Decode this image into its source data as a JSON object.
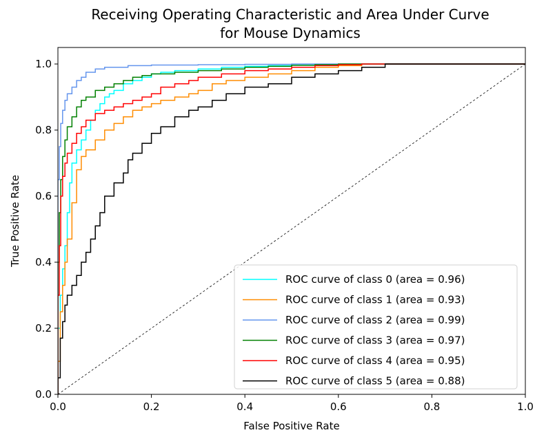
{
  "chart_data": {
    "type": "line",
    "title_lines": [
      "Receiving Operating Characteristic and Area Under Curve",
      "for Mouse Dynamics"
    ],
    "xlabel": "False Positive Rate",
    "ylabel": "True Positive Rate",
    "xlim": [
      0.0,
      1.0
    ],
    "ylim": [
      0.0,
      1.05
    ],
    "x_ticks": [
      0.0,
      0.2,
      0.4,
      0.6,
      0.8,
      1.0
    ],
    "x_tick_labels": [
      "0.0",
      "0.2",
      "0.4",
      "0.6",
      "0.8",
      "1.0"
    ],
    "y_ticks": [
      0.0,
      0.2,
      0.4,
      0.6,
      0.8,
      1.0
    ],
    "y_tick_labels": [
      "0.0",
      "0.2",
      "0.4",
      "0.6",
      "0.8",
      "1.0"
    ],
    "grid": false,
    "legend_position": "lower-right",
    "diagonal": {
      "x": [
        0,
        1
      ],
      "y": [
        0,
        1
      ],
      "color": "#000000",
      "style": "dashed"
    },
    "series": [
      {
        "name": "ROC curve of class 0 (area = 0.96)",
        "color": "#00ffff",
        "x": [
          0,
          0,
          0.005,
          0.01,
          0.015,
          0.02,
          0.025,
          0.03,
          0.04,
          0.05,
          0.06,
          0.07,
          0.08,
          0.09,
          0.1,
          0.11,
          0.12,
          0.14,
          0.16,
          0.18,
          0.2,
          0.22,
          0.25,
          0.3,
          0.35,
          0.4,
          0.45,
          0.5,
          0.55,
          0.6,
          0.65,
          0.7,
          0.8,
          0.9,
          1.0
        ],
        "y": [
          0,
          0.2,
          0.3,
          0.38,
          0.45,
          0.55,
          0.64,
          0.7,
          0.74,
          0.77,
          0.8,
          0.83,
          0.86,
          0.88,
          0.9,
          0.91,
          0.92,
          0.94,
          0.95,
          0.96,
          0.97,
          0.975,
          0.98,
          0.985,
          0.99,
          0.993,
          0.995,
          0.997,
          0.998,
          0.999,
          1.0,
          1.0,
          1.0,
          1.0,
          1.0
        ]
      },
      {
        "name": "ROC curve of class 1 (area = 0.93)",
        "color": "#ff8c00",
        "x": [
          0,
          0,
          0.005,
          0.01,
          0.015,
          0.02,
          0.03,
          0.04,
          0.05,
          0.06,
          0.08,
          0.1,
          0.12,
          0.14,
          0.16,
          0.18,
          0.2,
          0.22,
          0.25,
          0.28,
          0.3,
          0.33,
          0.36,
          0.4,
          0.45,
          0.5,
          0.55,
          0.6,
          0.65,
          0.7,
          0.8,
          0.9,
          1.0
        ],
        "y": [
          0,
          0.1,
          0.25,
          0.33,
          0.4,
          0.47,
          0.58,
          0.68,
          0.72,
          0.74,
          0.77,
          0.8,
          0.82,
          0.84,
          0.86,
          0.87,
          0.88,
          0.89,
          0.9,
          0.91,
          0.92,
          0.94,
          0.95,
          0.96,
          0.97,
          0.98,
          0.99,
          0.995,
          1.0,
          1.0,
          1.0,
          1.0,
          1.0
        ]
      },
      {
        "name": "ROC curve of class 2 (area = 0.99)",
        "color": "#6495ed",
        "x": [
          0,
          0,
          0.003,
          0.006,
          0.01,
          0.015,
          0.02,
          0.03,
          0.04,
          0.05,
          0.06,
          0.08,
          0.1,
          0.15,
          0.2,
          0.3,
          0.4,
          0.5,
          0.6,
          0.7,
          0.8,
          0.9,
          1.0
        ],
        "y": [
          0,
          0.65,
          0.75,
          0.82,
          0.86,
          0.89,
          0.91,
          0.93,
          0.95,
          0.96,
          0.975,
          0.985,
          0.99,
          0.995,
          0.997,
          0.998,
          0.999,
          1.0,
          1.0,
          1.0,
          1.0,
          1.0,
          1.0
        ]
      },
      {
        "name": "ROC curve of class 3 (area = 0.97)",
        "color": "#008000",
        "x": [
          0,
          0,
          0.003,
          0.006,
          0.01,
          0.015,
          0.02,
          0.03,
          0.04,
          0.05,
          0.06,
          0.08,
          0.1,
          0.12,
          0.14,
          0.16,
          0.18,
          0.2,
          0.25,
          0.3,
          0.35,
          0.4,
          0.45,
          0.5,
          0.55,
          0.6,
          0.7,
          0.8,
          0.9,
          1.0
        ],
        "y": [
          0,
          0.4,
          0.55,
          0.65,
          0.72,
          0.77,
          0.81,
          0.84,
          0.87,
          0.89,
          0.9,
          0.92,
          0.93,
          0.94,
          0.95,
          0.96,
          0.965,
          0.97,
          0.975,
          0.98,
          0.985,
          0.99,
          0.993,
          0.996,
          0.998,
          1.0,
          1.0,
          1.0,
          1.0,
          1.0
        ]
      },
      {
        "name": "ROC curve of class 4 (area = 0.95)",
        "color": "#ff0000",
        "x": [
          0,
          0,
          0.003,
          0.006,
          0.01,
          0.015,
          0.02,
          0.03,
          0.04,
          0.05,
          0.06,
          0.08,
          0.1,
          0.12,
          0.14,
          0.16,
          0.18,
          0.2,
          0.22,
          0.25,
          0.28,
          0.3,
          0.35,
          0.4,
          0.45,
          0.5,
          0.55,
          0.6,
          0.65,
          0.7,
          0.8,
          0.9,
          1.0
        ],
        "y": [
          0,
          0.3,
          0.45,
          0.6,
          0.66,
          0.7,
          0.73,
          0.76,
          0.79,
          0.81,
          0.83,
          0.85,
          0.86,
          0.87,
          0.88,
          0.89,
          0.9,
          0.91,
          0.93,
          0.94,
          0.95,
          0.96,
          0.97,
          0.98,
          0.985,
          0.99,
          0.995,
          0.998,
          1.0,
          1.0,
          1.0,
          1.0,
          1.0
        ]
      },
      {
        "name": "ROC curve of class 5 (area = 0.88)",
        "color": "#000000",
        "x": [
          0,
          0,
          0.005,
          0.01,
          0.015,
          0.02,
          0.03,
          0.04,
          0.05,
          0.06,
          0.07,
          0.08,
          0.09,
          0.1,
          0.12,
          0.14,
          0.15,
          0.16,
          0.18,
          0.2,
          0.22,
          0.25,
          0.28,
          0.3,
          0.33,
          0.36,
          0.4,
          0.45,
          0.5,
          0.55,
          0.6,
          0.65,
          0.7,
          0.8,
          0.9,
          1.0
        ],
        "y": [
          0,
          0.05,
          0.17,
          0.22,
          0.27,
          0.3,
          0.33,
          0.36,
          0.4,
          0.43,
          0.47,
          0.51,
          0.55,
          0.6,
          0.64,
          0.67,
          0.71,
          0.73,
          0.76,
          0.79,
          0.81,
          0.84,
          0.86,
          0.87,
          0.89,
          0.91,
          0.93,
          0.94,
          0.96,
          0.97,
          0.98,
          0.99,
          1.0,
          1.0,
          1.0,
          1.0
        ]
      }
    ]
  }
}
